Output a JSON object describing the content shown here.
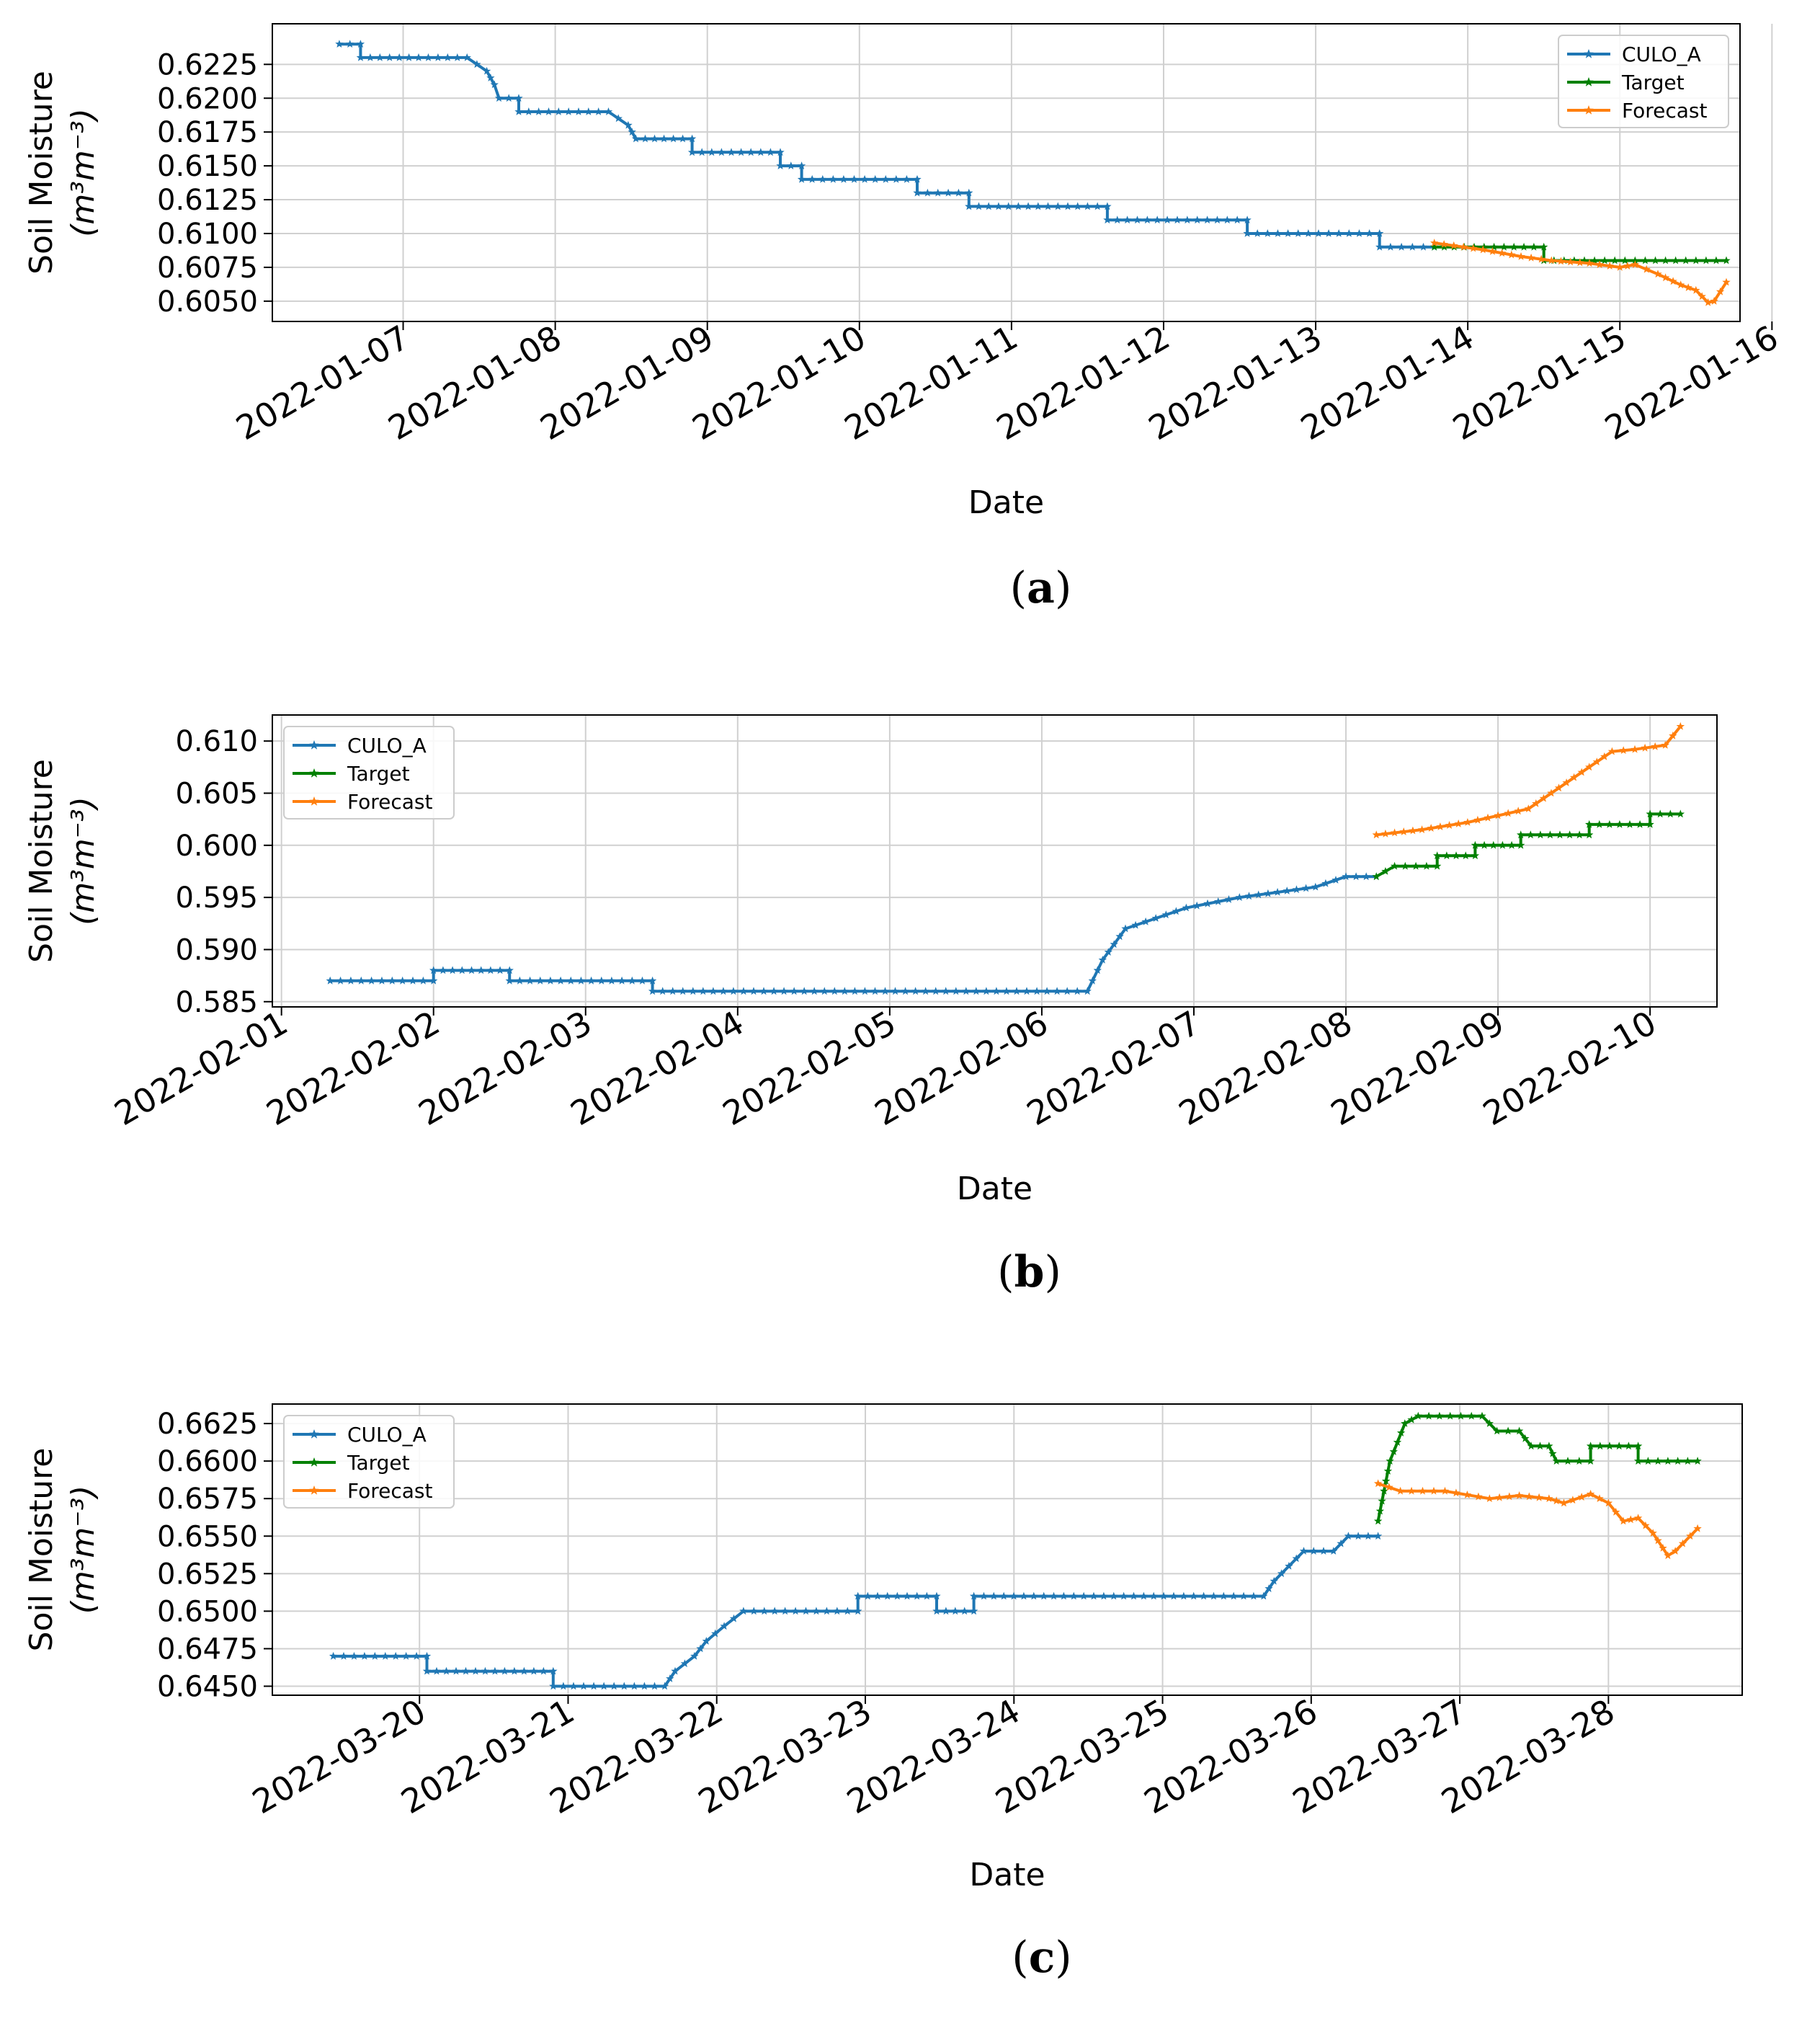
{
  "chart_data": [
    {
      "type": "line",
      "panel": "a",
      "caption_letter": "a",
      "xlabel": "Date",
      "ylabel_line1": "Soil Moisture",
      "ylabel_line2": "(m³m⁻³)",
      "ylim": [
        0.6035,
        0.6255
      ],
      "xlim": [
        -0.86,
        8.79
      ],
      "grid": true,
      "legend_position": "upper right",
      "yticks": [
        0.605,
        0.6075,
        0.61,
        0.6125,
        0.615,
        0.6175,
        0.62,
        0.6225
      ],
      "ytick_labels": [
        "0.6050",
        "0.6075",
        "0.6100",
        "0.6125",
        "0.6150",
        "0.6175",
        "0.6200",
        "0.6225"
      ],
      "xticks": [
        "2022-01-07",
        "2022-01-08",
        "2022-01-09",
        "2022-01-10",
        "2022-01-11",
        "2022-01-12",
        "2022-01-13",
        "2022-01-14",
        "2022-01-15",
        "2022-01-16"
      ],
      "series": [
        {
          "name": "CULO_A",
          "color": "#1f77b4",
          "points": [
            [
              -0.42,
              0.624
            ],
            [
              -0.28,
              0.624
            ],
            [
              -0.28,
              0.623
            ],
            [
              0.42,
              0.623
            ],
            [
              0.55,
              0.622
            ],
            [
              0.6,
              0.621
            ],
            [
              0.63,
              0.62
            ],
            [
              0.76,
              0.62
            ],
            [
              0.76,
              0.619
            ],
            [
              1.35,
              0.619
            ],
            [
              1.48,
              0.618
            ],
            [
              1.53,
              0.617
            ],
            [
              1.9,
              0.617
            ],
            [
              1.9,
              0.616
            ],
            [
              2.48,
              0.616
            ],
            [
              2.48,
              0.615
            ],
            [
              2.62,
              0.615
            ],
            [
              2.62,
              0.614
            ],
            [
              3.38,
              0.614
            ],
            [
              3.38,
              0.613
            ],
            [
              3.72,
              0.613
            ],
            [
              3.72,
              0.612
            ],
            [
              4.63,
              0.612
            ],
            [
              4.63,
              0.611
            ],
            [
              5.55,
              0.611
            ],
            [
              5.55,
              0.61
            ],
            [
              6.42,
              0.61
            ],
            [
              6.42,
              0.609
            ],
            [
              6.78,
              0.609
            ]
          ]
        },
        {
          "name": "Target",
          "color": "#008000",
          "points": [
            [
              6.78,
              0.609
            ],
            [
              7.5,
              0.609
            ],
            [
              7.5,
              0.608
            ],
            [
              8.7,
              0.608
            ]
          ]
        },
        {
          "name": "Forecast",
          "color": "#ff7f0e",
          "points": [
            [
              6.78,
              0.6093
            ],
            [
              7.1,
              0.6088
            ],
            [
              7.35,
              0.6083
            ],
            [
              7.55,
              0.608
            ],
            [
              7.8,
              0.6078
            ],
            [
              8.0,
              0.6075
            ],
            [
              8.1,
              0.6077
            ],
            [
              8.25,
              0.607
            ],
            [
              8.4,
              0.6062
            ],
            [
              8.5,
              0.6058
            ],
            [
              8.58,
              0.6049
            ],
            [
              8.62,
              0.605
            ],
            [
              8.7,
              0.6064
            ]
          ]
        }
      ]
    },
    {
      "type": "line",
      "panel": "b",
      "caption_letter": "b",
      "xlabel": "Date",
      "ylabel_line1": "Soil Moisture",
      "ylabel_line2": "(m³m⁻³)",
      "ylim": [
        0.5845,
        0.6125
      ],
      "xlim": [
        -0.06,
        9.44
      ],
      "grid": true,
      "legend_position": "upper left",
      "yticks": [
        0.585,
        0.59,
        0.595,
        0.6,
        0.605,
        0.61
      ],
      "ytick_labels": [
        "0.585",
        "0.590",
        "0.595",
        "0.600",
        "0.605",
        "0.610"
      ],
      "xticks": [
        "2022-02-01",
        "2022-02-02",
        "2022-02-03",
        "2022-02-04",
        "2022-02-05",
        "2022-02-06",
        "2022-02-07",
        "2022-02-08",
        "2022-02-09",
        "2022-02-10"
      ],
      "series": [
        {
          "name": "CULO_A",
          "color": "#1f77b4",
          "points": [
            [
              0.32,
              0.587
            ],
            [
              1.0,
              0.587
            ],
            [
              1.0,
              0.588
            ],
            [
              1.5,
              0.588
            ],
            [
              1.5,
              0.587
            ],
            [
              2.44,
              0.587
            ],
            [
              2.44,
              0.586
            ],
            [
              5.3,
              0.586
            ],
            [
              5.4,
              0.589
            ],
            [
              5.55,
              0.592
            ],
            [
              5.75,
              0.593
            ],
            [
              5.95,
              0.594
            ],
            [
              6.3,
              0.595
            ],
            [
              6.8,
              0.596
            ],
            [
              7.0,
              0.597
            ],
            [
              7.2,
              0.597
            ]
          ]
        },
        {
          "name": "Target",
          "color": "#008000",
          "points": [
            [
              7.2,
              0.597
            ],
            [
              7.32,
              0.598
            ],
            [
              7.6,
              0.598
            ],
            [
              7.6,
              0.599
            ],
            [
              7.85,
              0.599
            ],
            [
              7.85,
              0.6
            ],
            [
              8.15,
              0.6
            ],
            [
              8.15,
              0.601
            ],
            [
              8.6,
              0.601
            ],
            [
              8.6,
              0.602
            ],
            [
              9.0,
              0.602
            ],
            [
              9.0,
              0.603
            ],
            [
              9.2,
              0.603
            ]
          ]
        },
        {
          "name": "Forecast",
          "color": "#ff7f0e",
          "points": [
            [
              7.2,
              0.601
            ],
            [
              7.5,
              0.6015
            ],
            [
              7.8,
              0.6022
            ],
            [
              8.2,
              0.6035
            ],
            [
              8.4,
              0.6055
            ],
            [
              8.6,
              0.6075
            ],
            [
              8.75,
              0.609
            ],
            [
              8.9,
              0.6092
            ],
            [
              9.1,
              0.6096
            ],
            [
              9.2,
              0.6114
            ]
          ]
        }
      ]
    },
    {
      "type": "line",
      "panel": "c",
      "caption_letter": "c",
      "xlabel": "Date",
      "ylabel_line1": "Soil Moisture",
      "ylabel_line2": "(m³m⁻³)",
      "ylim": [
        0.6444,
        0.6638
      ],
      "xlim": [
        -0.99,
        8.9
      ],
      "grid": true,
      "legend_position": "upper left",
      "yticks": [
        0.645,
        0.6475,
        0.65,
        0.6525,
        0.655,
        0.6575,
        0.66,
        0.6625
      ],
      "ytick_labels": [
        "0.6450",
        "0.6475",
        "0.6500",
        "0.6525",
        "0.6550",
        "0.6575",
        "0.6600",
        "0.6625"
      ],
      "xticks": [
        "2022-03-20",
        "2022-03-21",
        "2022-03-22",
        "2022-03-23",
        "2022-03-24",
        "2022-03-25",
        "2022-03-26",
        "2022-03-27",
        "2022-03-28"
      ],
      "series": [
        {
          "name": "CULO_A",
          "color": "#1f77b4",
          "points": [
            [
              -0.58,
              0.647
            ],
            [
              0.05,
              0.647
            ],
            [
              0.05,
              0.646
            ],
            [
              0.9,
              0.646
            ],
            [
              0.9,
              0.645
            ],
            [
              1.65,
              0.645
            ],
            [
              1.72,
              0.646
            ],
            [
              1.85,
              0.647
            ],
            [
              1.93,
              0.648
            ],
            [
              2.05,
              0.649
            ],
            [
              2.18,
              0.65
            ],
            [
              2.95,
              0.65
            ],
            [
              2.95,
              0.651
            ],
            [
              3.48,
              0.651
            ],
            [
              3.48,
              0.65
            ],
            [
              3.73,
              0.65
            ],
            [
              3.73,
              0.651
            ],
            [
              5.68,
              0.651
            ],
            [
              5.75,
              0.652
            ],
            [
              5.85,
              0.653
            ],
            [
              5.95,
              0.654
            ],
            [
              6.15,
              0.654
            ],
            [
              6.25,
              0.655
            ],
            [
              6.45,
              0.655
            ]
          ]
        },
        {
          "name": "Target",
          "color": "#008000",
          "points": [
            [
              6.45,
              0.656
            ],
            [
              6.53,
              0.66
            ],
            [
              6.63,
              0.6625
            ],
            [
              6.72,
              0.663
            ],
            [
              7.15,
              0.663
            ],
            [
              7.25,
              0.662
            ],
            [
              7.4,
              0.662
            ],
            [
              7.48,
              0.661
            ],
            [
              7.6,
              0.661
            ],
            [
              7.65,
              0.66
            ],
            [
              7.88,
              0.66
            ],
            [
              7.88,
              0.661
            ],
            [
              8.2,
              0.661
            ],
            [
              8.2,
              0.66
            ],
            [
              8.6,
              0.66
            ]
          ]
        },
        {
          "name": "Forecast",
          "color": "#ff7f0e",
          "points": [
            [
              6.45,
              0.6585
            ],
            [
              6.6,
              0.658
            ],
            [
              6.9,
              0.658
            ],
            [
              7.2,
              0.6575
            ],
            [
              7.4,
              0.6577
            ],
            [
              7.6,
              0.6575
            ],
            [
              7.7,
              0.6572
            ],
            [
              7.88,
              0.6578
            ],
            [
              8.0,
              0.6572
            ],
            [
              8.1,
              0.656
            ],
            [
              8.2,
              0.6562
            ],
            [
              8.3,
              0.6552
            ],
            [
              8.4,
              0.6537
            ],
            [
              8.45,
              0.654
            ],
            [
              8.6,
              0.6555
            ]
          ]
        }
      ]
    }
  ]
}
